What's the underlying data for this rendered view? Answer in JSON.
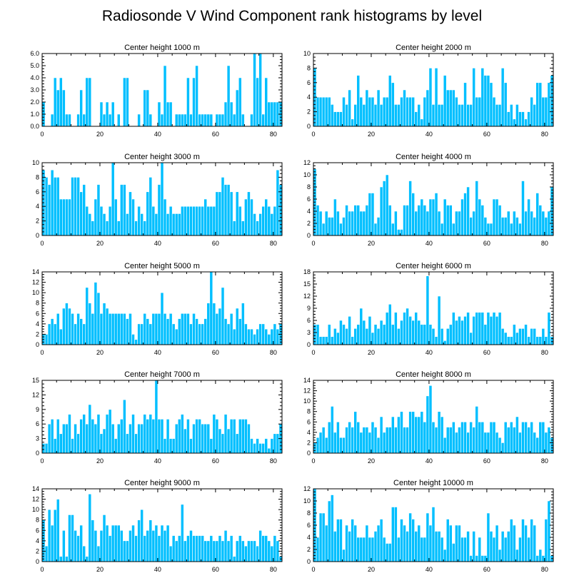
{
  "colors": {
    "bar": "#00bfff",
    "background": "#ffffff",
    "axis": "#000000"
  },
  "title": "Radiosonde V Wind Component rank histograms by level",
  "chart_data": [
    {
      "type": "bar",
      "title": "Center height 1000 m",
      "xlim": [
        0,
        83
      ],
      "ylim": [
        0,
        6
      ],
      "xticks": [
        "0",
        "20",
        "40",
        "60",
        "80"
      ],
      "yticks": [
        "0.0",
        "1.0",
        "2.0",
        "3.0",
        "4.0",
        "5.0",
        "6.0"
      ],
      "values": [
        2,
        0,
        0,
        1,
        4,
        3,
        4,
        3,
        1,
        1,
        0,
        0,
        1,
        3,
        1,
        4,
        4,
        0,
        0,
        0,
        2,
        1,
        2,
        1,
        2,
        0,
        1,
        0,
        4,
        4,
        0,
        0,
        0,
        1,
        0,
        3,
        3,
        1,
        0,
        0,
        2,
        1,
        5,
        2,
        2,
        0,
        1,
        1,
        1,
        1,
        4,
        1,
        4,
        5,
        1,
        1,
        1,
        1,
        1,
        0,
        1,
        1,
        1,
        2,
        5,
        2,
        1,
        3,
        4,
        1,
        0,
        0,
        1,
        6,
        4,
        6,
        1,
        4,
        2,
        2,
        2,
        2,
        2
      ]
    },
    {
      "type": "bar",
      "title": "Center height 2000 m",
      "xlim": [
        0,
        83
      ],
      "ylim": [
        0,
        10
      ],
      "xticks": [
        "0",
        "20",
        "40",
        "60",
        "80"
      ],
      "yticks": [
        "0",
        "2",
        "4",
        "6",
        "8",
        "10"
      ],
      "values": [
        8,
        4,
        4,
        4,
        4,
        4,
        3,
        2,
        2,
        2,
        4,
        3,
        5,
        1,
        3,
        7,
        4,
        3,
        5,
        4,
        4,
        3,
        5,
        3,
        4,
        4,
        7,
        6,
        3,
        3,
        4,
        5,
        4,
        4,
        4,
        2,
        3,
        1,
        4,
        5,
        8,
        3,
        8,
        3,
        3,
        7,
        5,
        5,
        5,
        4,
        3,
        3,
        6,
        3,
        3,
        8,
        4,
        4,
        8,
        7,
        7,
        6,
        4,
        3,
        3,
        8,
        6,
        2,
        3,
        1,
        3,
        2,
        2,
        1,
        2,
        4,
        3,
        6,
        6,
        4,
        4,
        6,
        7
      ]
    },
    {
      "type": "bar",
      "title": "Center height 3000 m",
      "xlim": [
        0,
        83
      ],
      "ylim": [
        0,
        10
      ],
      "xticks": [
        "0",
        "20",
        "40",
        "60",
        "80"
      ],
      "yticks": [
        "0",
        "2",
        "4",
        "6",
        "8",
        "10"
      ],
      "values": [
        9,
        8,
        7,
        9,
        8,
        8,
        5,
        5,
        5,
        5,
        8,
        8,
        8,
        6,
        7,
        4,
        3,
        2,
        5,
        7,
        4,
        3,
        2,
        4,
        10,
        5,
        2,
        7,
        7,
        3,
        6,
        5,
        2,
        4,
        3,
        2,
        6,
        8,
        4,
        3,
        7,
        10,
        5,
        3,
        4,
        3,
        3,
        3,
        4,
        4,
        4,
        4,
        4,
        4,
        4,
        4,
        5,
        4,
        4,
        4,
        6,
        6,
        8,
        7,
        7,
        6,
        2,
        6,
        4,
        2,
        5,
        6,
        5,
        3,
        2,
        3,
        4,
        5,
        4,
        3,
        4,
        9,
        7
      ]
    },
    {
      "type": "bar",
      "title": "Center height 4000 m",
      "xlim": [
        0,
        83
      ],
      "ylim": [
        0,
        12
      ],
      "xticks": [
        "0",
        "20",
        "40",
        "60",
        "80"
      ],
      "yticks": [
        "0",
        "2",
        "4",
        "6",
        "8",
        "10",
        "12"
      ],
      "values": [
        11,
        5,
        4,
        2,
        4,
        3,
        3,
        6,
        4,
        2,
        3,
        5,
        4,
        4,
        5,
        5,
        4,
        4,
        5,
        7,
        7,
        2,
        3,
        8,
        9,
        10,
        5,
        2,
        4,
        1,
        1,
        5,
        5,
        9,
        7,
        4,
        5,
        6,
        5,
        4,
        6,
        6,
        7,
        4,
        2,
        6,
        5,
        5,
        2,
        4,
        4,
        6,
        7,
        8,
        3,
        4,
        9,
        6,
        5,
        3,
        2,
        2,
        6,
        6,
        5,
        3,
        3,
        4,
        2,
        4,
        3,
        2,
        9,
        4,
        6,
        4,
        3,
        7,
        5,
        4,
        3,
        4,
        8
      ]
    },
    {
      "type": "bar",
      "title": "Center height 5000 m",
      "xlim": [
        0,
        83
      ],
      "ylim": [
        0,
        14
      ],
      "xticks": [
        "0",
        "20",
        "40",
        "60",
        "80"
      ],
      "yticks": [
        "0",
        "2",
        "4",
        "6",
        "8",
        "10",
        "12",
        "14"
      ],
      "values": [
        2,
        2,
        4,
        5,
        4,
        6,
        3,
        7,
        8,
        7,
        6,
        4,
        6,
        5,
        4,
        11,
        8,
        6,
        12,
        10,
        6,
        8,
        7,
        6,
        6,
        6,
        6,
        6,
        6,
        5,
        6,
        2,
        1,
        4,
        4,
        6,
        5,
        4,
        6,
        6,
        6,
        10,
        6,
        5,
        6,
        4,
        3,
        5,
        6,
        6,
        6,
        4,
        6,
        5,
        4,
        4,
        5,
        8,
        14,
        8,
        6,
        7,
        11,
        5,
        4,
        6,
        3,
        7,
        5,
        8,
        4,
        3,
        3,
        2,
        3,
        4,
        4,
        3,
        2,
        3,
        4,
        3,
        4
      ]
    },
    {
      "type": "bar",
      "title": "Center height 6000 m",
      "xlim": [
        0,
        83
      ],
      "ylim": [
        0,
        18
      ],
      "xticks": [
        "0",
        "20",
        "40",
        "60",
        "80"
      ],
      "yticks": [
        "0",
        "3",
        "6",
        "9",
        "12",
        "15",
        "18"
      ],
      "values": [
        5,
        5,
        2,
        2,
        2,
        5,
        2,
        4,
        3,
        6,
        5,
        4,
        7,
        2,
        4,
        5,
        9,
        6,
        4,
        7,
        3,
        5,
        4,
        6,
        5,
        8,
        10,
        5,
        8,
        4,
        6,
        8,
        9,
        7,
        6,
        8,
        6,
        5,
        5,
        17,
        5,
        4,
        2,
        12,
        4,
        1,
        4,
        5,
        8,
        6,
        7,
        6,
        7,
        8,
        3,
        7,
        8,
        8,
        8,
        5,
        8,
        7,
        8,
        7,
        8,
        4,
        3,
        2,
        2,
        5,
        3,
        4,
        4,
        5,
        2,
        4,
        4,
        2,
        2,
        4,
        2,
        8,
        2
      ]
    },
    {
      "type": "bar",
      "title": "Center height 7000 m",
      "xlim": [
        0,
        83
      ],
      "ylim": [
        0,
        15
      ],
      "xticks": [
        "0",
        "20",
        "40",
        "60",
        "80"
      ],
      "yticks": [
        "0",
        "3",
        "6",
        "9",
        "12",
        "15"
      ],
      "values": [
        2,
        2,
        6,
        7,
        3,
        7,
        4,
        6,
        6,
        8,
        3,
        6,
        4,
        7,
        8,
        6,
        10,
        7,
        6,
        8,
        4,
        5,
        8,
        9,
        6,
        3,
        6,
        7,
        11,
        4,
        6,
        8,
        4,
        6,
        6,
        8,
        7,
        8,
        7,
        15,
        7,
        7,
        3,
        7,
        3,
        3,
        6,
        7,
        8,
        5,
        7,
        3,
        6,
        7,
        7,
        6,
        6,
        6,
        3,
        8,
        7,
        5,
        4,
        8,
        5,
        7,
        7,
        4,
        7,
        7,
        7,
        6,
        3,
        2,
        3,
        2,
        2,
        3,
        1,
        3,
        4,
        4,
        6
      ]
    },
    {
      "type": "bar",
      "title": "Center height 8000 m",
      "xlim": [
        0,
        83
      ],
      "ylim": [
        0,
        14
      ],
      "xticks": [
        "0",
        "20",
        "40",
        "60",
        "80"
      ],
      "yticks": [
        "0",
        "2",
        "4",
        "6",
        "8",
        "10",
        "12",
        "14"
      ],
      "values": [
        2,
        3,
        4,
        5,
        3,
        6,
        9,
        4,
        6,
        3,
        3,
        5,
        6,
        5,
        8,
        6,
        4,
        5,
        5,
        4,
        6,
        5,
        3,
        7,
        4,
        5,
        5,
        7,
        5,
        7,
        8,
        5,
        5,
        8,
        8,
        7,
        7,
        8,
        6,
        11,
        13,
        6,
        5,
        8,
        7,
        3,
        5,
        5,
        6,
        4,
        5,
        6,
        6,
        4,
        6,
        5,
        9,
        6,
        6,
        4,
        4,
        6,
        6,
        4,
        3,
        2,
        6,
        5,
        6,
        5,
        7,
        4,
        6,
        6,
        5,
        6,
        4,
        3,
        6,
        6,
        4,
        5,
        3
      ]
    },
    {
      "type": "bar",
      "title": "Center height 9000 m",
      "xlim": [
        0,
        83
      ],
      "ylim": [
        0,
        14
      ],
      "xticks": [
        "0",
        "20",
        "40",
        "60",
        "80"
      ],
      "yticks": [
        "0",
        "2",
        "4",
        "6",
        "8",
        "10",
        "12",
        "14"
      ],
      "values": [
        8,
        3,
        10,
        7,
        10,
        12,
        1,
        6,
        1,
        9,
        9,
        6,
        5,
        7,
        3,
        1,
        13,
        8,
        6,
        3,
        6,
        9,
        7,
        5,
        7,
        7,
        7,
        6,
        4,
        4,
        6,
        7,
        5,
        8,
        10,
        5,
        6,
        8,
        6,
        7,
        5,
        7,
        6,
        7,
        3,
        5,
        4,
        5,
        11,
        4,
        5,
        6,
        5,
        5,
        5,
        5,
        4,
        4,
        5,
        4,
        4,
        5,
        4,
        6,
        4,
        5,
        1,
        4,
        5,
        4,
        3,
        4,
        4,
        4,
        3,
        6,
        5,
        5,
        4,
        3,
        5,
        4,
        1
      ]
    },
    {
      "type": "bar",
      "title": "Center height 10000 m",
      "xlim": [
        0,
        83
      ],
      "ylim": [
        0,
        12
      ],
      "xticks": [
        "0",
        "20",
        "40",
        "60",
        "80"
      ],
      "yticks": [
        "0",
        "2",
        "4",
        "6",
        "8",
        "10",
        "12"
      ],
      "values": [
        12,
        4,
        8,
        8,
        6,
        10,
        11,
        5,
        7,
        7,
        2,
        6,
        5,
        7,
        6,
        4,
        4,
        4,
        6,
        4,
        4,
        5,
        6,
        7,
        4,
        3,
        3,
        9,
        9,
        4,
        7,
        6,
        5,
        8,
        7,
        5,
        6,
        4,
        4,
        8,
        6,
        9,
        5,
        5,
        4,
        2,
        7,
        6,
        3,
        6,
        6,
        4,
        4,
        5,
        1,
        5,
        1,
        4,
        1,
        1,
        8,
        5,
        4,
        6,
        2,
        5,
        4,
        5,
        7,
        6,
        2,
        4,
        7,
        6,
        4,
        7,
        6,
        1,
        2,
        1,
        7,
        10,
        1
      ]
    }
  ]
}
